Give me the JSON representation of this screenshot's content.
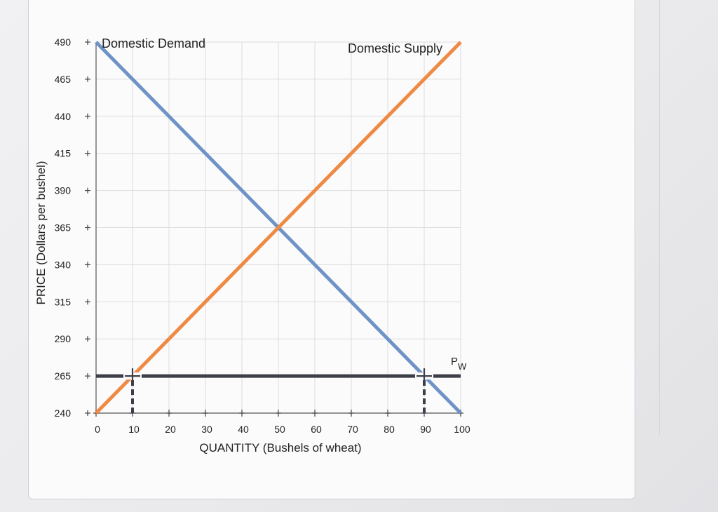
{
  "chart_data": {
    "type": "line",
    "xlabel": "QUANTITY (Bushels of wheat)",
    "ylabel": "PRICE (Dollars per bushel)",
    "xlim": [
      0,
      100
    ],
    "ylim": [
      240,
      490
    ],
    "x_ticks": [
      0,
      10,
      20,
      30,
      40,
      50,
      60,
      70,
      80,
      90,
      100
    ],
    "y_ticks": [
      240,
      265,
      290,
      315,
      340,
      365,
      390,
      415,
      440,
      465,
      490
    ],
    "grid": true,
    "series": [
      {
        "name": "Domestic Demand",
        "color": "#6f93c6",
        "x": [
          0,
          100
        ],
        "y": [
          490,
          240
        ]
      },
      {
        "name": "Domestic Supply",
        "color": "#ef8a43",
        "x": [
          0,
          100
        ],
        "y": [
          240,
          490
        ]
      }
    ],
    "world_price": {
      "label_main": "P",
      "label_sub": "W",
      "value": 265,
      "color": "#3c3f47"
    },
    "markers": [
      {
        "x": 10,
        "y": 265
      },
      {
        "x": 90,
        "y": 265
      }
    ],
    "legend_placement": "inline-top"
  }
}
